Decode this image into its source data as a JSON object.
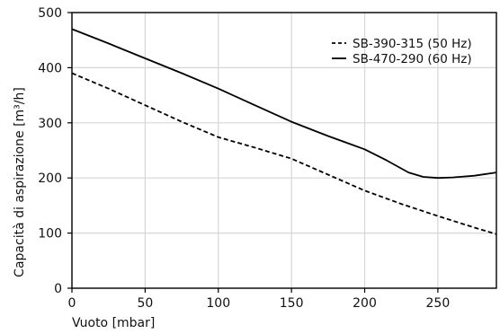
{
  "chart_data": {
    "type": "line",
    "xlabel": "Vuoto [mbar]",
    "ylabel": "Capacità di aspirazione [m³/h]",
    "xlim": [
      0,
      290
    ],
    "ylim": [
      0,
      500
    ],
    "xticks": [
      0,
      50,
      100,
      150,
      200,
      250
    ],
    "yticks": [
      0,
      100,
      200,
      300,
      400,
      500
    ],
    "grid": true,
    "legend_position": "top-right",
    "series": [
      {
        "name": "SB-390-315 (50 Hz)",
        "style": "dashed",
        "color": "#000000",
        "x": [
          0,
          25,
          50,
          75,
          100,
          125,
          150,
          175,
          200,
          225,
          250,
          275,
          290
        ],
        "y": [
          390,
          362,
          332,
          302,
          274,
          255,
          235,
          206,
          177,
          153,
          131,
          110,
          98
        ]
      },
      {
        "name": "SB-470-290 (60 Hz)",
        "style": "solid",
        "color": "#000000",
        "x": [
          0,
          25,
          50,
          75,
          100,
          125,
          150,
          175,
          200,
          215,
          230,
          240,
          250,
          260,
          275,
          290
        ],
        "y": [
          470,
          444,
          417,
          390,
          362,
          332,
          302,
          276,
          252,
          232,
          210,
          202,
          200,
          201,
          204,
          210
        ]
      }
    ]
  }
}
